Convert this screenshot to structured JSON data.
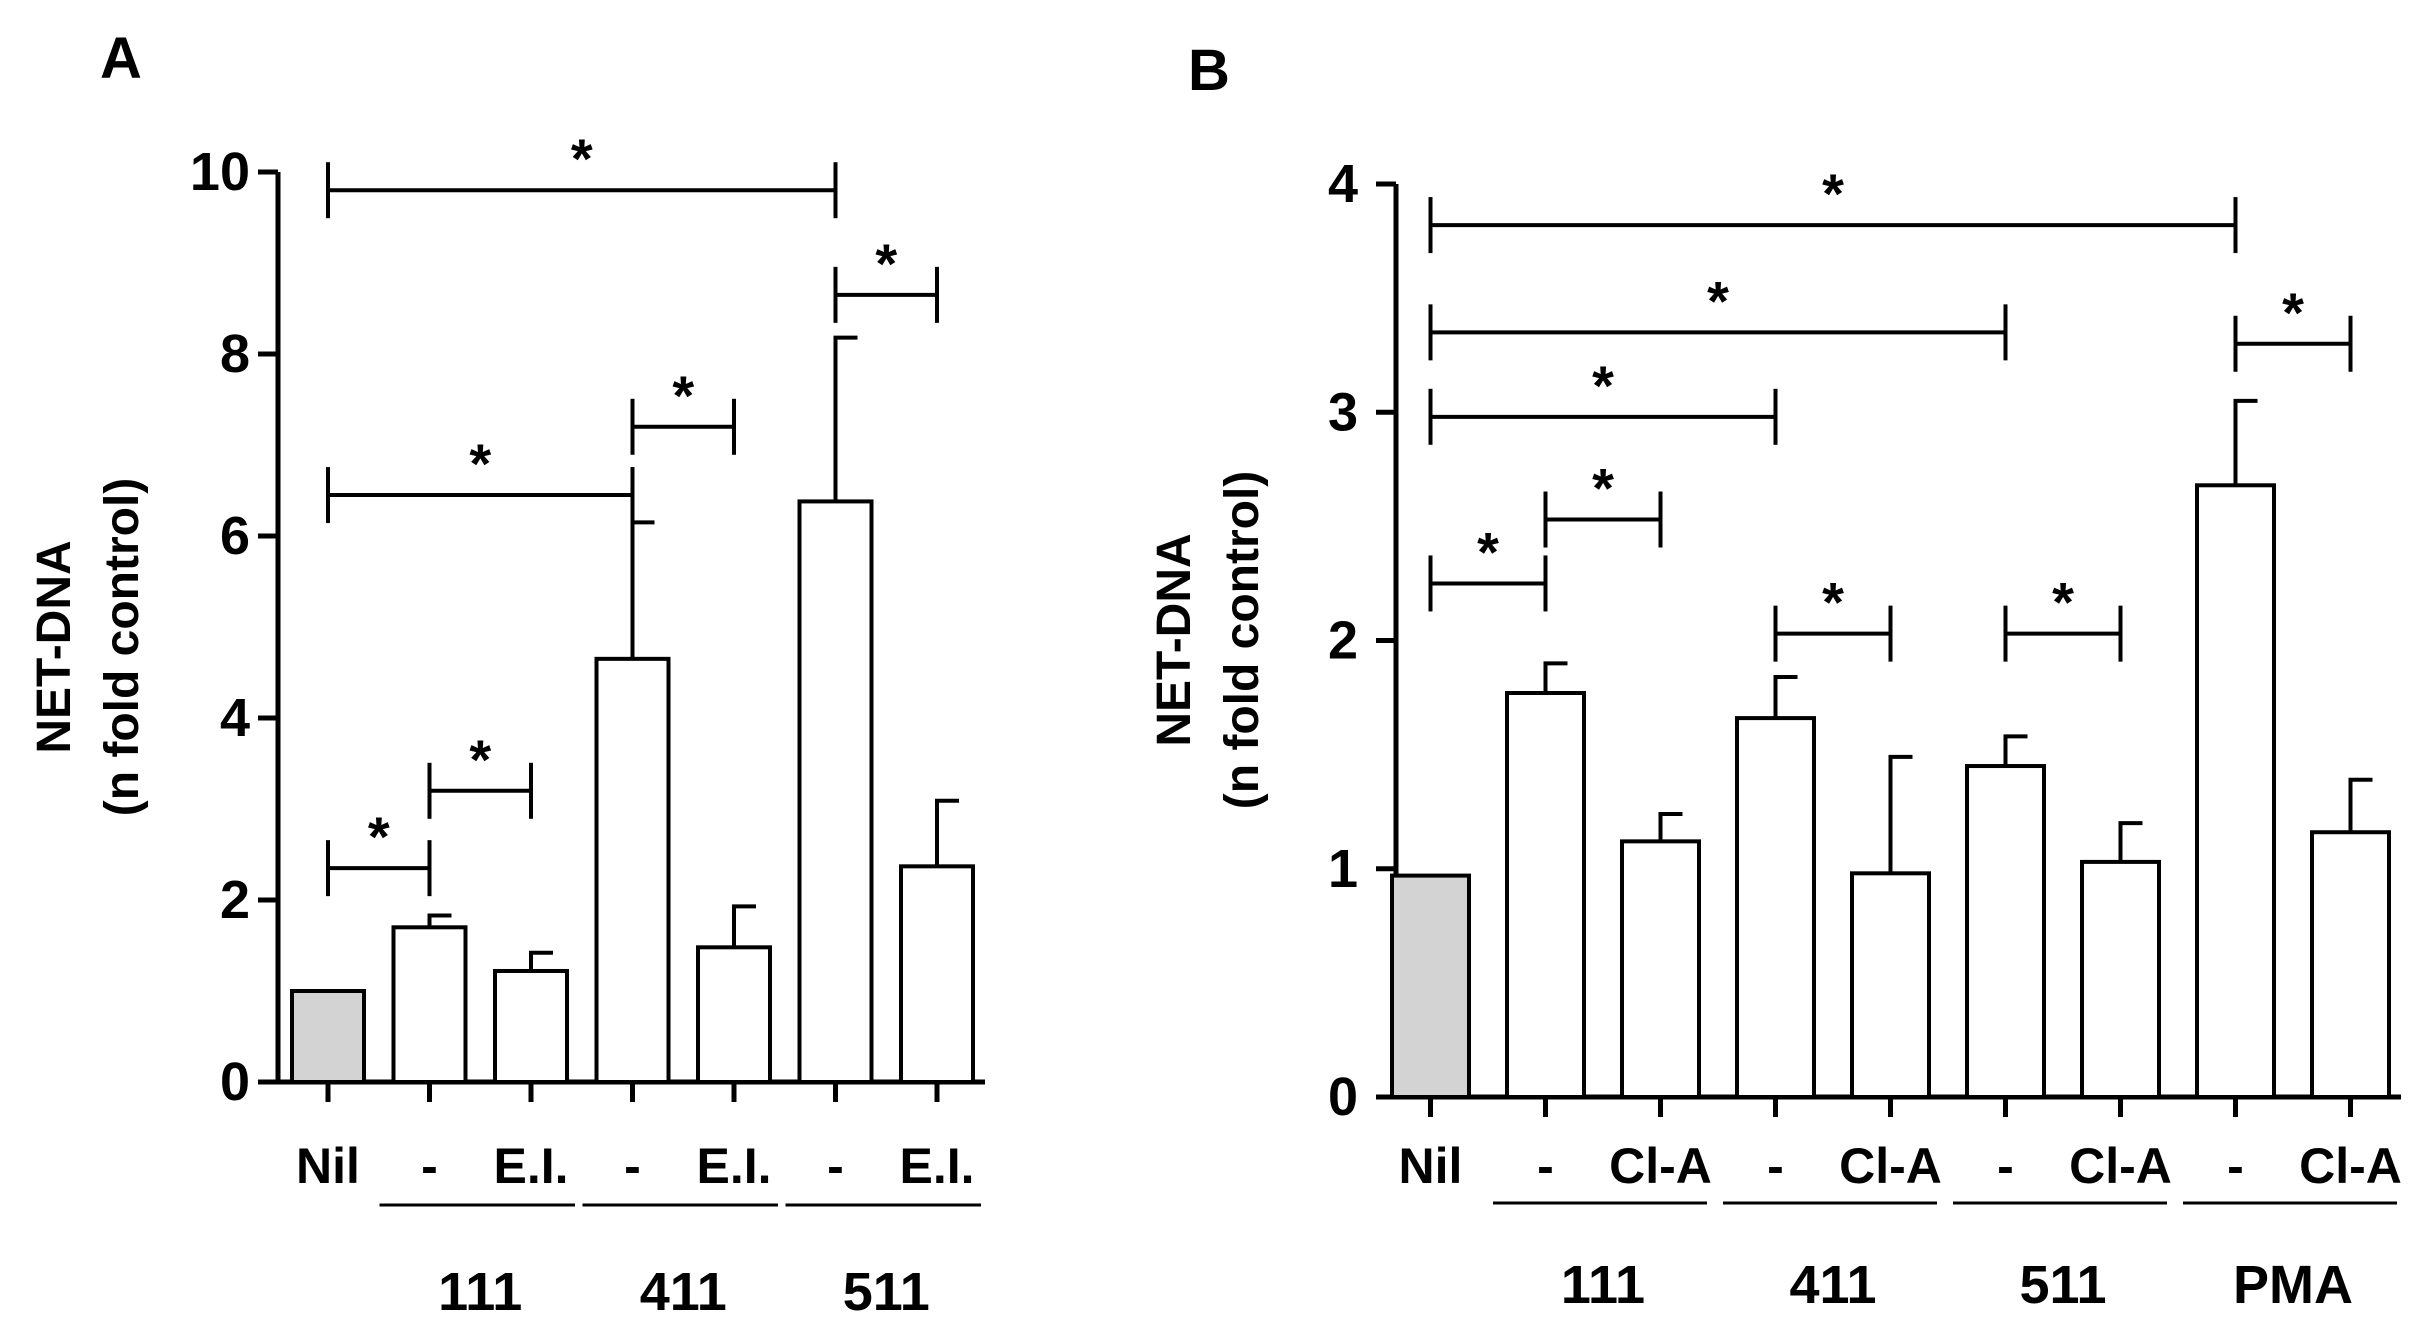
{
  "chart_data": [
    {
      "panel": "A",
      "type": "bar",
      "ylabel": "NET-DNA",
      "ylabel2": "(n fold control)",
      "ylim": [
        0,
        10
      ],
      "yticks": [
        0,
        2,
        4,
        6,
        8,
        10
      ],
      "categories": [
        "Nil",
        "-",
        "E.I.",
        "-",
        "E.I.",
        "-",
        "E.I."
      ],
      "values": [
        1.0,
        1.7,
        1.22,
        4.65,
        1.48,
        6.38,
        2.37
      ],
      "errors": [
        0,
        0.13,
        0.2,
        1.5,
        0.45,
        1.8,
        0.72
      ],
      "fills": [
        "#d3d3d3",
        "#ffffff",
        "#ffffff",
        "#ffffff",
        "#ffffff",
        "#ffffff",
        "#ffffff"
      ],
      "groups": [
        {
          "label": "111",
          "from": 1,
          "to": 2
        },
        {
          "label": "411",
          "from": 3,
          "to": 4
        },
        {
          "label": "511",
          "from": 5,
          "to": 6
        }
      ],
      "significance": [
        {
          "from": 0,
          "to": 1,
          "y": 2.35,
          "label": "*"
        },
        {
          "from": 1,
          "to": 2,
          "y": 3.2,
          "label": "*"
        },
        {
          "from": 3,
          "to": 4,
          "y": 7.2,
          "label": "*"
        },
        {
          "from": 0,
          "to": 3,
          "y": 6.45,
          "label": "*"
        },
        {
          "from": 5,
          "to": 6,
          "y": 8.65,
          "label": "*"
        },
        {
          "from": 0,
          "to": 5,
          "y": 9.8,
          "label": "*"
        }
      ]
    },
    {
      "panel": "B",
      "type": "bar",
      "ylabel": "NET-DNA",
      "ylabel2": "(n fold control)",
      "ylim": [
        0,
        4
      ],
      "yticks": [
        0,
        1,
        2,
        3,
        4
      ],
      "categories": [
        "Nil",
        "-",
        "Cl-A",
        "-",
        "Cl-A",
        "-",
        "Cl-A",
        "-",
        "Cl-A"
      ],
      "values": [
        0.97,
        1.77,
        1.12,
        1.66,
        0.98,
        1.45,
        1.03,
        2.68,
        1.16
      ],
      "errors": [
        0,
        0.13,
        0.12,
        0.18,
        0.51,
        0.13,
        0.17,
        0.37,
        0.23
      ],
      "fills": [
        "#d3d3d3",
        "#ffffff",
        "#ffffff",
        "#ffffff",
        "#ffffff",
        "#ffffff",
        "#ffffff",
        "#ffffff",
        "#ffffff"
      ],
      "groups": [
        {
          "label": "111",
          "from": 1,
          "to": 2
        },
        {
          "label": "411",
          "from": 3,
          "to": 4
        },
        {
          "label": "511",
          "from": 5,
          "to": 6
        },
        {
          "label": "PMA",
          "from": 7,
          "to": 8
        }
      ],
      "significance": [
        {
          "from": 0,
          "to": 1,
          "y": 2.25,
          "label": "*"
        },
        {
          "from": 1,
          "to": 2,
          "y": 2.53,
          "label": "*"
        },
        {
          "from": 3,
          "to": 4,
          "y": 2.03,
          "label": "*"
        },
        {
          "from": 5,
          "to": 6,
          "y": 2.03,
          "label": "*"
        },
        {
          "from": 0,
          "to": 3,
          "y": 2.98,
          "label": "*"
        },
        {
          "from": 0,
          "to": 5,
          "y": 3.35,
          "label": "*"
        },
        {
          "from": 7,
          "to": 8,
          "y": 3.3,
          "label": "*"
        },
        {
          "from": 0,
          "to": 7,
          "y": 3.82,
          "label": "*"
        }
      ]
    }
  ]
}
